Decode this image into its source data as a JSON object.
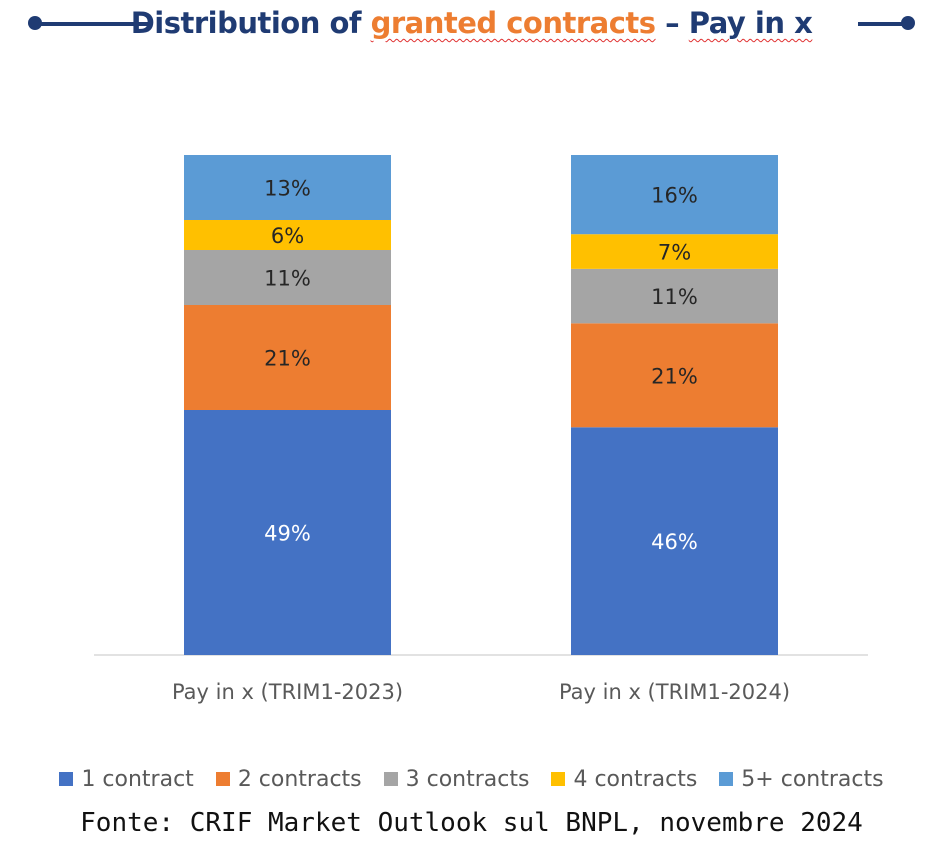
{
  "title": {
    "part1": "Distribution of ",
    "part2": "granted contracts",
    "part3": " – ",
    "part4": "Pay in x"
  },
  "chart_data": {
    "type": "bar",
    "stacked": true,
    "categories": [
      "Pay in x (TRIM1-2023)",
      "Pay in x (TRIM1-2024)"
    ],
    "series": [
      {
        "name": "1 contract",
        "values": [
          49,
          46
        ],
        "labels": [
          "49%",
          "46%"
        ],
        "color": "#4472c4",
        "label_color": "#ffffff"
      },
      {
        "name": "2 contracts",
        "values": [
          21,
          21
        ],
        "labels": [
          "21%",
          "21%"
        ],
        "color": "#ed7d31",
        "label_color": "#262626"
      },
      {
        "name": "3 contracts",
        "values": [
          11,
          11
        ],
        "labels": [
          "11%",
          "11%"
        ],
        "color": "#a5a5a5",
        "label_color": "#262626"
      },
      {
        "name": "4 contracts",
        "values": [
          6,
          7
        ],
        "labels": [
          "6%",
          "7%"
        ],
        "color": "#ffc000",
        "label_color": "#262626"
      },
      {
        "name": "5+ contracts",
        "values": [
          13,
          16
        ],
        "labels": [
          "13%",
          "16%"
        ],
        "color": "#5b9bd5",
        "label_color": "#262626"
      }
    ],
    "legend_position": "bottom",
    "grid": false
  },
  "source": "Fonte: CRIF Market Outlook sul BNPL, novembre 2024",
  "colors": {
    "title": "#1f3b73",
    "accent": "#ed7d31"
  }
}
